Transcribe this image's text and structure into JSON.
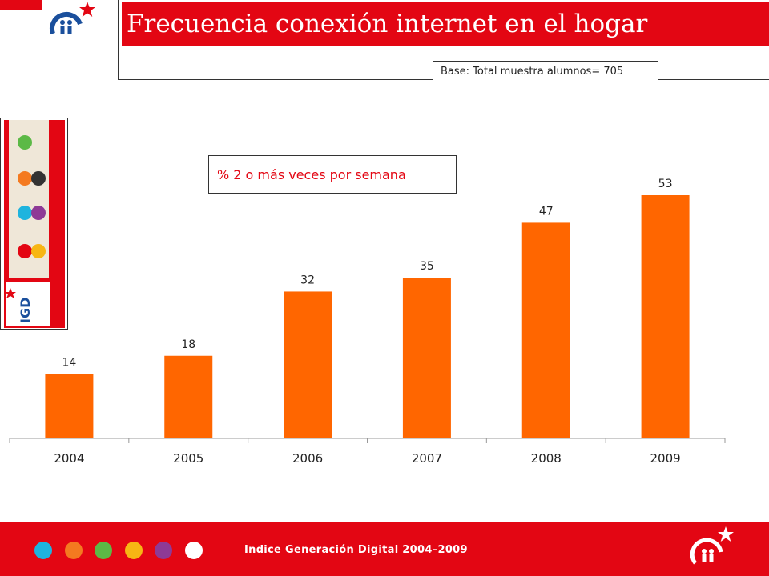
{
  "slide": {
    "title": "Frecuencia conexión internet en el hogar",
    "base_note": "Base: Total muestra alumnos= 705",
    "legend_text": "% 2 o más veces por semana"
  },
  "thumbnail": {
    "brand": "IGD"
  },
  "footer": {
    "text": "Indice Generación Digital 2004–2009",
    "dots": [
      {
        "name": "cyan-dot",
        "color": "#1fb4de"
      },
      {
        "name": "orange-dot",
        "color": "#f47a20"
      },
      {
        "name": "green-dot",
        "color": "#5cb946"
      },
      {
        "name": "yellow-dot",
        "color": "#f7b614"
      },
      {
        "name": "purple-dot",
        "color": "#8e3a96"
      },
      {
        "name": "white-dot",
        "color": "#ffffff"
      }
    ]
  },
  "colors": {
    "brand_red": "#e30613",
    "bar": "#ff6600"
  },
  "chart_data": {
    "type": "bar",
    "categories": [
      "2004",
      "2005",
      "2006",
      "2007",
      "2008",
      "2009"
    ],
    "series": [
      {
        "name": "% 2 o más veces por semana",
        "values": [
          14,
          18,
          32,
          35,
          47,
          53
        ]
      }
    ],
    "data_labels": [
      "14",
      "18",
      "32",
      "35",
      "47",
      "53"
    ],
    "ylim": [
      0,
      60
    ],
    "grid": false,
    "legend": "top-left"
  }
}
